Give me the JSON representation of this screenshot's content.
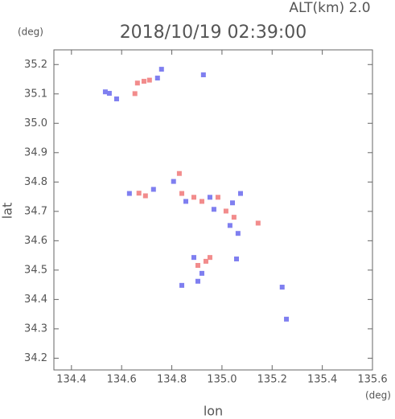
{
  "chart_data": {
    "type": "scatter",
    "title": "2018/10/19 02:39:00",
    "subtitle": "ALT(km) 2.0",
    "ylabel": "lat",
    "yunit": "(deg)",
    "xlabel": "lon",
    "xunit": "(deg)",
    "xlim": [
      134.33,
      135.6
    ],
    "ylim": [
      34.16,
      35.25
    ],
    "xticks": [
      134.4,
      134.6,
      134.8,
      {
        "value": 135.0,
        "label": "135.0"
      },
      135.2,
      135.4,
      135.6
    ],
    "yticks": [
      34.2,
      34.3,
      34.4,
      34.5,
      34.6,
      34.7,
      34.8,
      34.9,
      {
        "value": 35.0,
        "label": "35.0"
      },
      35.1,
      35.2
    ],
    "series": [
      {
        "color": "#f28c8c",
        "x": [
          134.663,
          134.689,
          134.711,
          134.653,
          134.669,
          134.695,
          134.83,
          134.84,
          134.888,
          134.92,
          134.984,
          135.016,
          135.048,
          135.144,
          134.904,
          134.936,
          134.952
        ],
        "values": [
          35.137,
          35.143,
          35.147,
          35.101,
          34.762,
          34.753,
          34.829,
          34.761,
          34.748,
          34.734,
          34.748,
          34.701,
          34.68,
          34.66,
          34.516,
          34.53,
          34.543
        ]
      },
      {
        "color": "#7f7ff0",
        "x": [
          134.535,
          134.551,
          134.58,
          134.743,
          134.759,
          134.926,
          134.631,
          134.727,
          134.807,
          134.856,
          134.952,
          134.968,
          135.042,
          135.032,
          135.064,
          135.074,
          135.058,
          134.888,
          134.92,
          134.904,
          134.84,
          135.24,
          135.257
        ],
        "values": [
          35.107,
          35.102,
          35.083,
          35.154,
          35.184,
          35.165,
          34.761,
          34.775,
          34.802,
          34.734,
          34.748,
          34.707,
          34.729,
          34.652,
          34.625,
          34.761,
          34.538,
          34.543,
          34.489,
          34.462,
          34.448,
          34.442,
          34.333
        ]
      }
    ]
  }
}
